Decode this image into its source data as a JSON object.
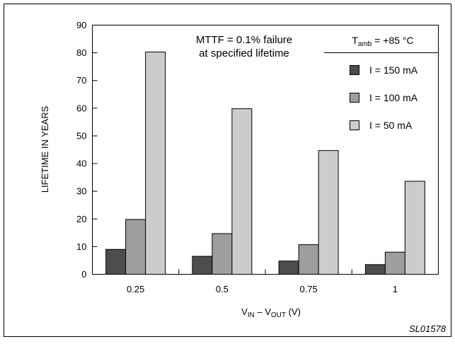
{
  "chart_data": {
    "type": "bar",
    "categories": [
      "0.25",
      "0.5",
      "0.75",
      "1"
    ],
    "series": [
      {
        "name": "I = 150 mA",
        "values": [
          9,
          6.5,
          4.8,
          3.5
        ],
        "color": "#4d4d4d"
      },
      {
        "name": "I = 100 mA",
        "values": [
          19.8,
          14.7,
          10.7,
          8
        ],
        "color": "#9e9e9e"
      },
      {
        "name": "I = 50 mA",
        "values": [
          80.3,
          59.8,
          44.7,
          33.6
        ],
        "color": "#cccccc"
      }
    ],
    "ylim": [
      0,
      90
    ],
    "yticks": [
      "0",
      "10",
      "20",
      "30",
      "40",
      "50",
      "60",
      "70",
      "80",
      "90"
    ],
    "ylabel": "LIFETIME IN YEARS",
    "xlabel": {
      "main": "V",
      "sub1": "IN",
      "sep": " – V",
      "sub2": "OUT",
      "unit": " (V)"
    },
    "annotation": [
      "MTTF = 0.1% failure",
      "at specified lifetime"
    ],
    "condition": {
      "main": "T",
      "sub": "amb",
      "rest": " = +85 °C"
    },
    "legend_position": "right",
    "grid": false,
    "reference": "SL01578"
  }
}
